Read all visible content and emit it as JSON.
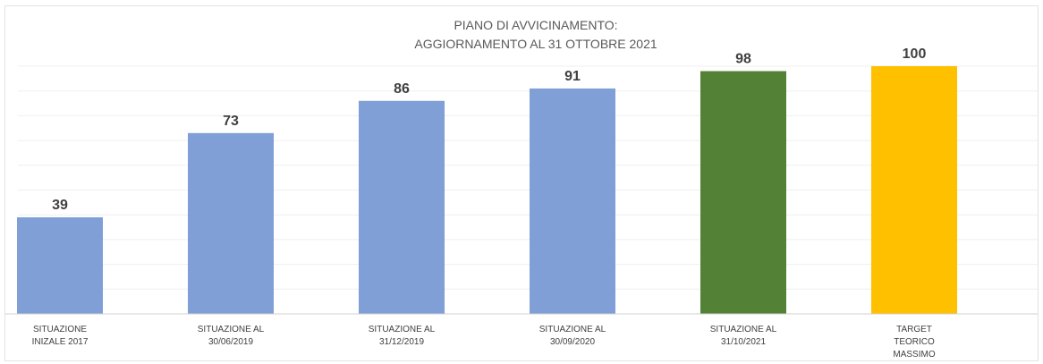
{
  "chart_data": {
    "type": "bar",
    "title_lines": [
      "PIANO DI AVVICINAMENTO:",
      "AGGIORNAMENTO AL 31 OTTOBRE 2021"
    ],
    "categories": [
      [
        "SITUAZIONE",
        "INIZALE 2017"
      ],
      [
        "SITUAZIONE AL",
        "30/06/2019"
      ],
      [
        "SITUAZIONE AL",
        "31/12/2019"
      ],
      [
        "SITUAZIONE AL",
        "30/09/2020"
      ],
      [
        "SITUAZIONE AL",
        "31/10/2021"
      ],
      [
        "TARGET",
        "TEORICO",
        "MASSIMO"
      ]
    ],
    "values": [
      39,
      73,
      86,
      91,
      98,
      100
    ],
    "data_labels": [
      "39",
      "73",
      "86",
      "91",
      "98",
      "100"
    ],
    "bar_colors": [
      "#7f9fd6",
      "#7f9fd6",
      "#7f9fd6",
      "#7f9fd6",
      "#538135",
      "#ffc000"
    ],
    "ylim": [
      0,
      100
    ],
    "grid": true,
    "legend": "none"
  }
}
